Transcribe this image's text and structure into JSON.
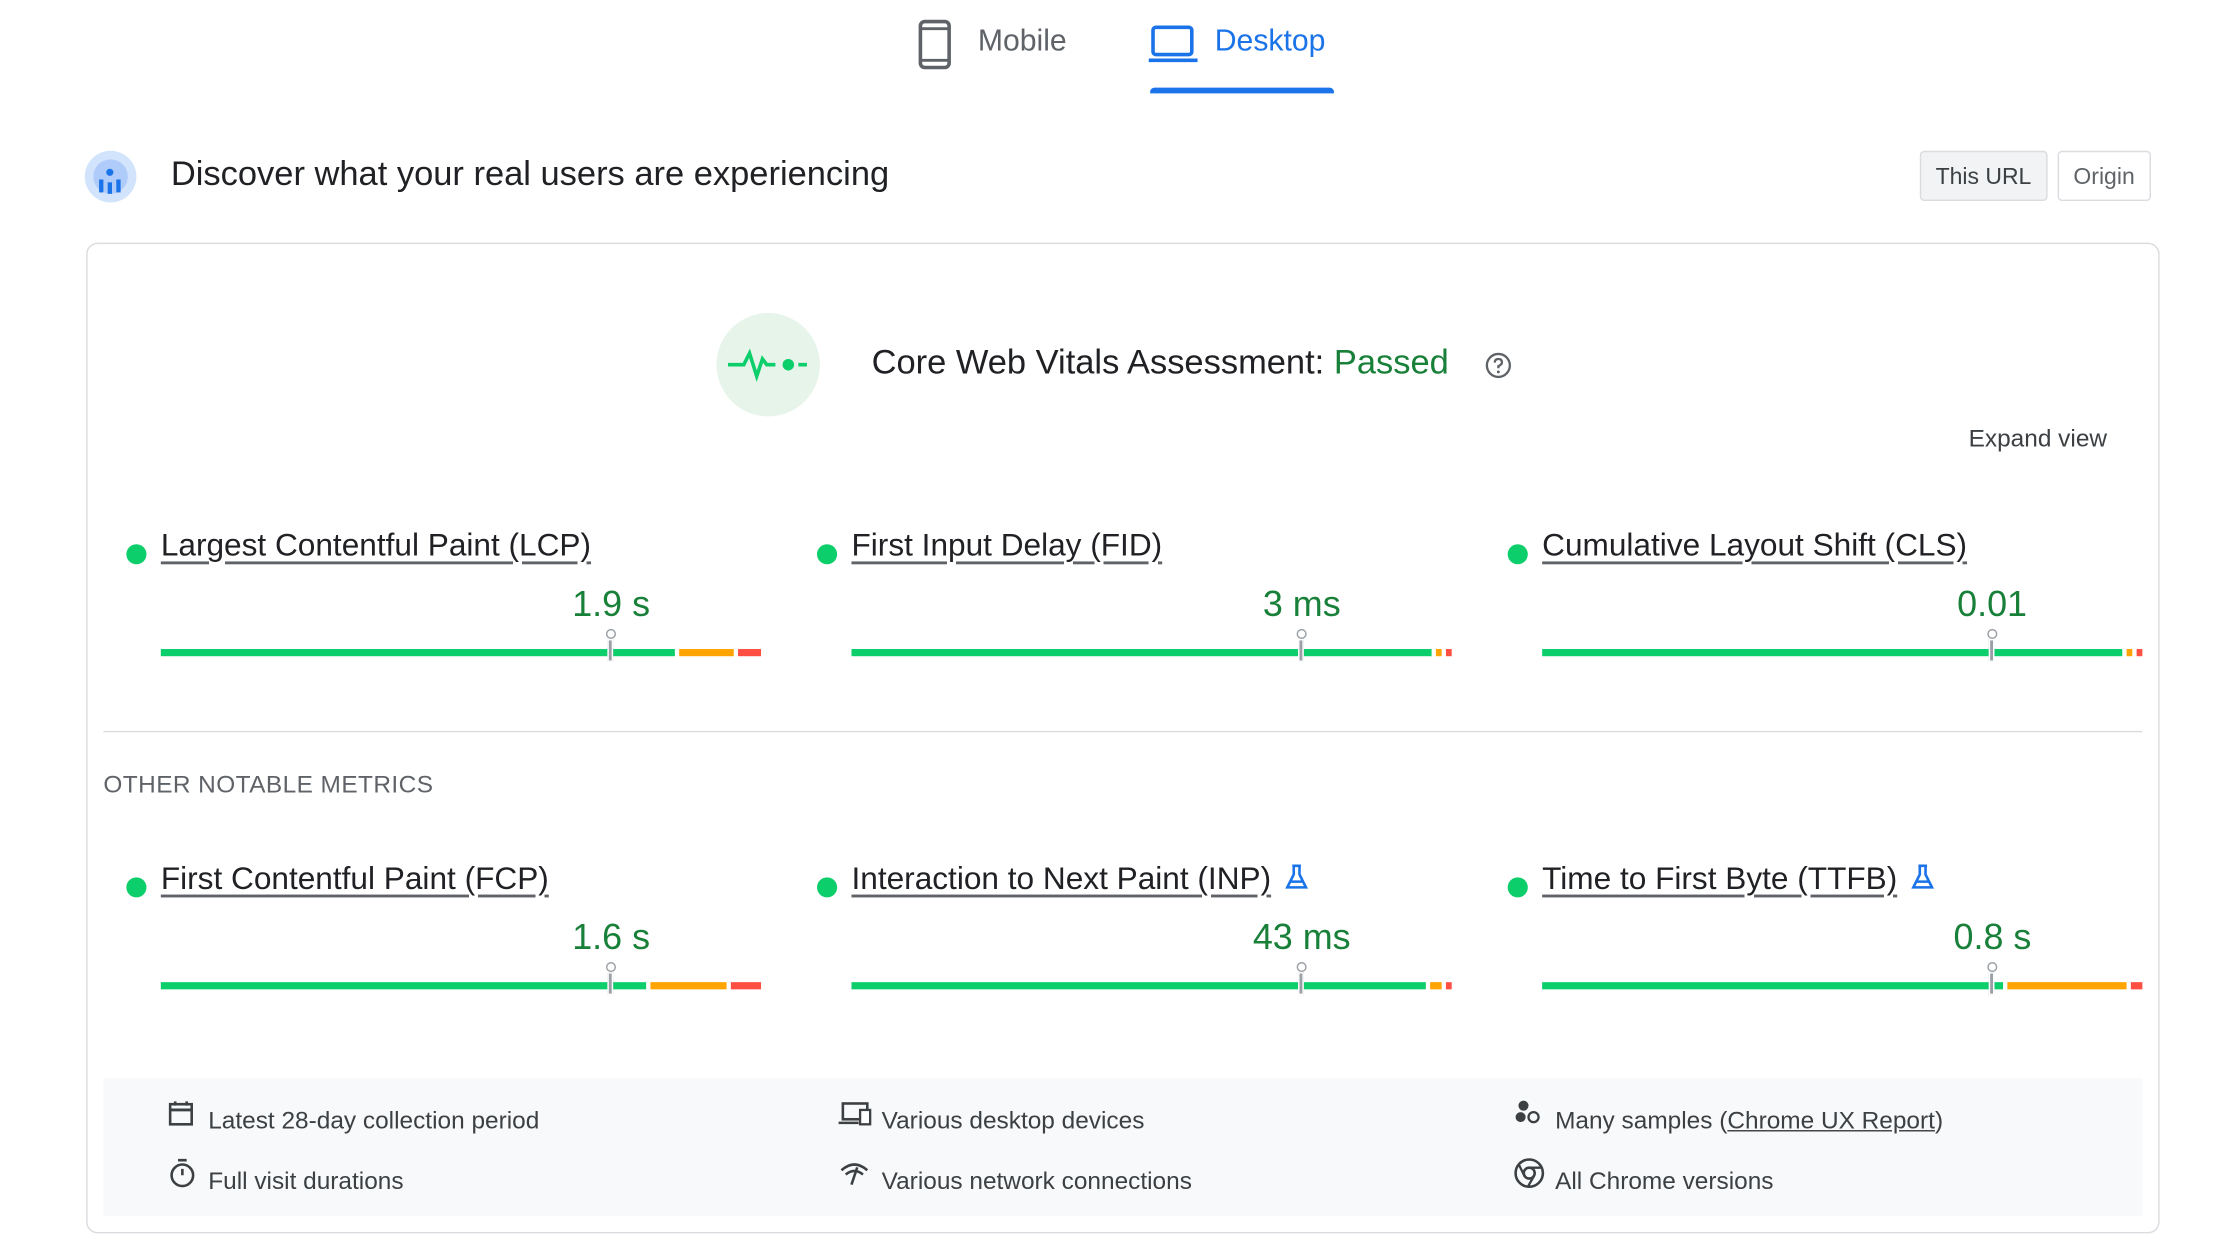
{
  "tabs": [
    "Mobile",
    "Desktop"
  ],
  "header": {
    "title": "Discover what your real users are experiencing",
    "toggle": [
      "This URL",
      "Origin"
    ]
  },
  "assessment": {
    "label": "Core Web Vitals Assessment:",
    "status": "Passed",
    "expand": "Expand view"
  },
  "core_metrics": [
    {
      "name": "Largest Contentful Paint (LCP)",
      "value": "1.9 s",
      "distribution": [
        87,
        9,
        4
      ]
    },
    {
      "name": "First Input Delay (FID)",
      "value": "3 ms",
      "distribution": [
        98,
        1,
        1
      ]
    },
    {
      "name": "Cumulative Layout Shift (CLS)",
      "value": "0.01",
      "distribution": [
        98,
        1,
        1
      ]
    }
  ],
  "other_heading": "OTHER NOTABLE METRICS",
  "other_metrics": [
    {
      "name": "First Contentful Paint (FCP)",
      "value": "1.6 s",
      "distribution": [
        82,
        13,
        5
      ],
      "experimental": false
    },
    {
      "name": "Interaction to Next Paint (INP)",
      "value": "43 ms",
      "distribution": [
        97,
        2,
        1
      ],
      "experimental": true
    },
    {
      "name": "Time to First Byte (TTFB)",
      "value": "0.8 s",
      "distribution": [
        78,
        20,
        2
      ],
      "experimental": true
    }
  ],
  "footer": {
    "calendar": "Latest 28-day collection period",
    "devices": "Various desktop devices",
    "samples": {
      "prefix": "Many samples (",
      "link": "Chrome UX Report",
      "suffix": ")"
    },
    "duration": "Full visit durations",
    "network": "Various network connections",
    "chrome": "All Chrome versions"
  }
}
